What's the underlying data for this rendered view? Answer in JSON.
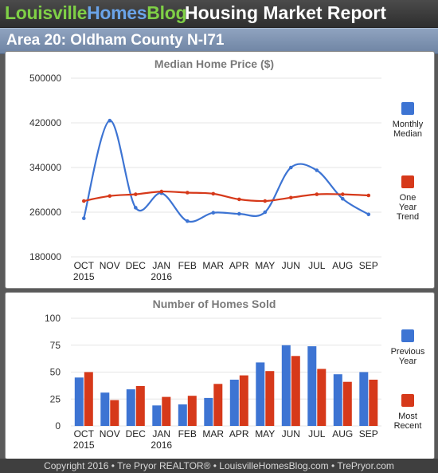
{
  "header": {
    "brand_part1": "Louisville",
    "brand_part2": "Homes",
    "brand_part3": "Blog",
    "report_title": "Housing Market Report"
  },
  "area_title": "Area 20: Oldham County N-I71",
  "footer": {
    "text": "Copyright 2016 • Tre Pryor REALTOR® • LouisvilleHomesBlog.com • TrePryor.com"
  },
  "colors": {
    "blue": "#3d74d3",
    "red": "#d6391a",
    "brand_green": "#7fd046",
    "brand_blue": "#6aa3e8",
    "area_bar": "#7d92b0"
  },
  "chart_data": [
    {
      "type": "line",
      "title": "Median Home Price ($)",
      "categories": [
        "OCT",
        "NOV",
        "DEC",
        "JAN",
        "FEB",
        "MAR",
        "APR",
        "MAY",
        "JUN",
        "JUL",
        "AUG",
        "SEP"
      ],
      "category_sublabels": [
        "2015",
        "",
        "",
        "2016",
        "",
        "",
        "",
        "",
        "",
        "",
        "",
        ""
      ],
      "ylim": [
        180000,
        500000
      ],
      "yticks": [
        "500000",
        "420000",
        "340000",
        "260000",
        "180000"
      ],
      "ytick_values": [
        500000,
        420000,
        340000,
        260000,
        180000
      ],
      "grid": true,
      "legend_position": "right",
      "series": [
        {
          "name": "Monthly Median",
          "legend_lines": [
            "Monthly",
            "Median"
          ],
          "color": "#3d74d3",
          "values": [
            249000,
            424000,
            268000,
            294000,
            244000,
            259000,
            257000,
            260000,
            340000,
            335000,
            284000,
            256000
          ]
        },
        {
          "name": "One Year Trend",
          "legend_lines": [
            "One",
            "Year",
            "Trend"
          ],
          "color": "#d6391a",
          "values": [
            280000,
            289000,
            292000,
            297000,
            295000,
            293000,
            283000,
            280000,
            286000,
            292000,
            292000,
            290000
          ]
        }
      ]
    },
    {
      "type": "bar",
      "title": "Number of Homes Sold",
      "categories": [
        "OCT",
        "NOV",
        "DEC",
        "JAN",
        "FEB",
        "MAR",
        "APR",
        "MAY",
        "JUN",
        "JUL",
        "AUG",
        "SEP"
      ],
      "category_sublabels": [
        "2015",
        "",
        "",
        "2016",
        "",
        "",
        "",
        "",
        "",
        "",
        "",
        ""
      ],
      "ylim": [
        0,
        100
      ],
      "yticks": [
        "100",
        "75",
        "50",
        "25",
        "0"
      ],
      "ytick_values": [
        100,
        75,
        50,
        25,
        0
      ],
      "grid": true,
      "legend_position": "right",
      "series": [
        {
          "name": "Previous Year",
          "legend_lines": [
            "Previous",
            "Year"
          ],
          "color": "#3d74d3",
          "values": [
            45,
            31,
            34,
            19,
            20,
            26,
            43,
            59,
            75,
            74,
            48,
            50
          ]
        },
        {
          "name": "Most Recent",
          "legend_lines": [
            "Most",
            "Recent"
          ],
          "color": "#d6391a",
          "values": [
            50,
            24,
            37,
            27,
            28,
            39,
            47,
            51,
            65,
            53,
            41,
            43
          ]
        }
      ]
    }
  ]
}
